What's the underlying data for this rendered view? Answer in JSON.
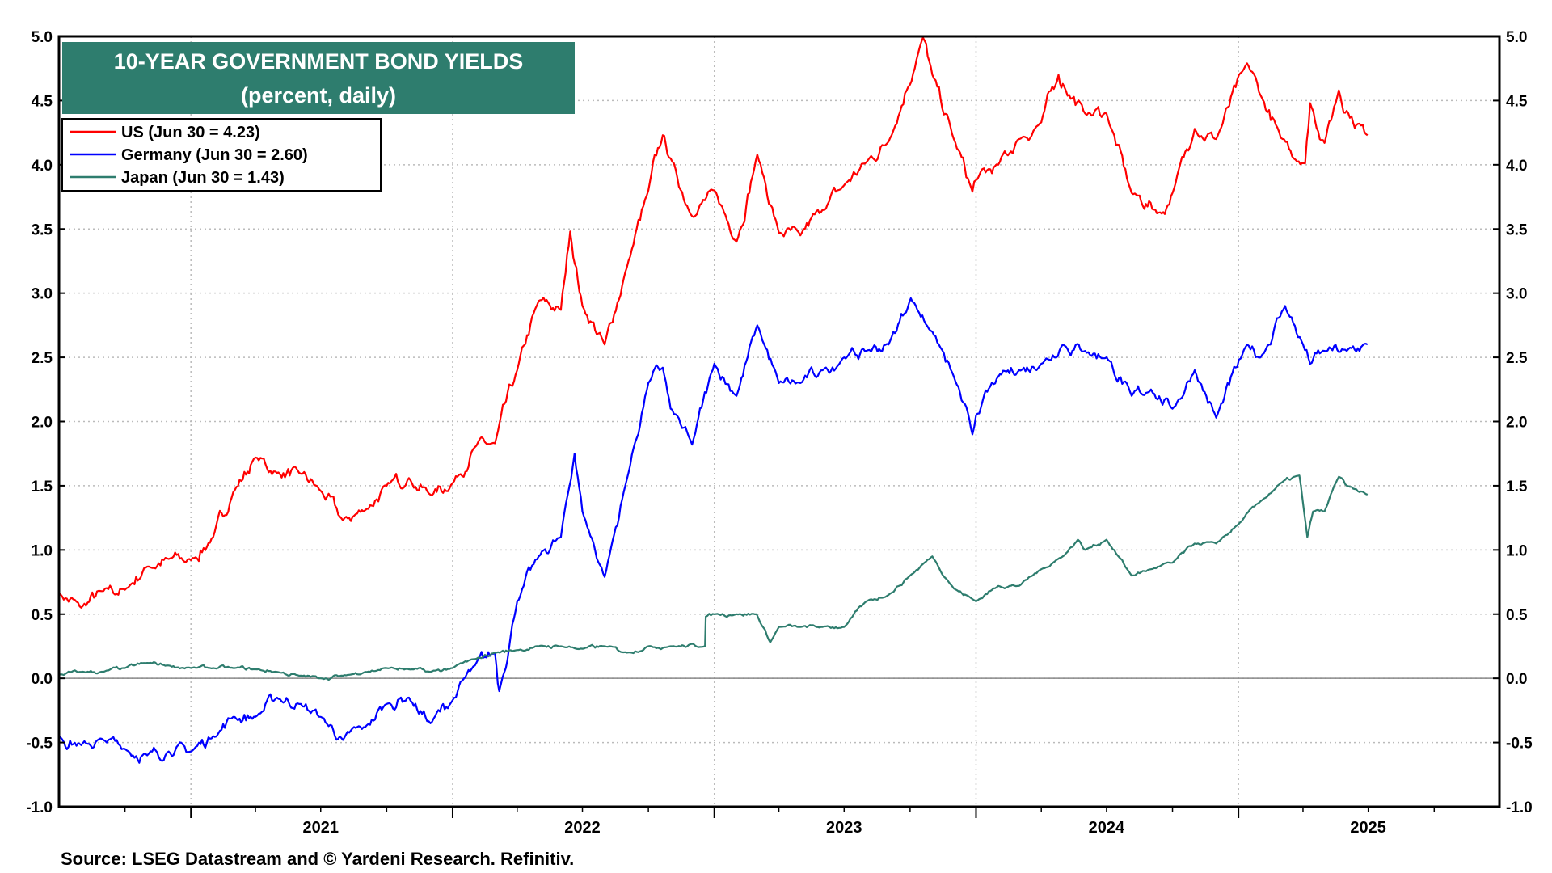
{
  "chart_data": {
    "type": "line",
    "title": "10-YEAR GOVERNMENT BOND YIELDS",
    "subtitle": "(percent, daily)",
    "source": "Source: LSEG Datastream and © Yardeni Research. Refinitiv.",
    "ylim": [
      -1.0,
      5.0
    ],
    "y_ticks": [
      "-1.0",
      "-0.5",
      "0.0",
      "0.5",
      "1.0",
      "1.5",
      "2.0",
      "2.5",
      "3.0",
      "3.5",
      "4.0",
      "4.5",
      "5.0"
    ],
    "x_range": [
      "2020-07-01",
      "2025-12-31"
    ],
    "x_tick_labels": [
      "2021",
      "2022",
      "2023",
      "2024",
      "2025"
    ],
    "grid": true,
    "legend_position": "top-left",
    "colors": {
      "title_bg": "#2e7d6e",
      "us": "#ff0000",
      "germany": "#0000ff",
      "japan": "#2e7d6e"
    },
    "series": [
      {
        "name": "US (Jun 30 = 4.23)",
        "points": [
          [
            "2020-07-01",
            0.66
          ],
          [
            "2020-08-01",
            0.55
          ],
          [
            "2020-09-01",
            0.68
          ],
          [
            "2020-10-01",
            0.69
          ],
          [
            "2020-11-01",
            0.87
          ],
          [
            "2020-12-01",
            0.93
          ],
          [
            "2021-01-01",
            0.92
          ],
          [
            "2021-02-01",
            1.1
          ],
          [
            "2021-03-01",
            1.45
          ],
          [
            "2021-04-01",
            1.72
          ],
          [
            "2021-05-01",
            1.6
          ],
          [
            "2021-06-01",
            1.6
          ],
          [
            "2021-07-01",
            1.46
          ],
          [
            "2021-08-01",
            1.23
          ],
          [
            "2021-09-01",
            1.31
          ],
          [
            "2021-10-01",
            1.5
          ],
          [
            "2021-11-01",
            1.56
          ],
          [
            "2021-12-01",
            1.43
          ],
          [
            "2022-01-01",
            1.52
          ],
          [
            "2022-02-01",
            1.8
          ],
          [
            "2022-03-01",
            1.83
          ],
          [
            "2022-04-01",
            2.4
          ],
          [
            "2022-05-01",
            2.94
          ],
          [
            "2022-06-01",
            2.87
          ],
          [
            "2022-06-14",
            3.48
          ],
          [
            "2022-07-01",
            2.9
          ],
          [
            "2022-08-01",
            2.6
          ],
          [
            "2022-09-01",
            3.2
          ],
          [
            "2022-10-01",
            3.8
          ],
          [
            "2022-10-21",
            4.23
          ],
          [
            "2022-11-01",
            4.05
          ],
          [
            "2022-12-01",
            3.6
          ],
          [
            "2023-01-01",
            3.8
          ],
          [
            "2023-02-01",
            3.4
          ],
          [
            "2023-03-02",
            4.08
          ],
          [
            "2023-04-01",
            3.47
          ],
          [
            "2023-05-01",
            3.45
          ],
          [
            "2023-06-01",
            3.65
          ],
          [
            "2023-07-01",
            3.84
          ],
          [
            "2023-08-01",
            4.02
          ],
          [
            "2023-09-01",
            4.18
          ],
          [
            "2023-10-19",
            4.99
          ],
          [
            "2023-11-01",
            4.7
          ],
          [
            "2023-12-01",
            4.2
          ],
          [
            "2023-12-27",
            3.79
          ],
          [
            "2024-01-01",
            3.88
          ],
          [
            "2024-02-01",
            4.0
          ],
          [
            "2024-03-01",
            4.2
          ],
          [
            "2024-04-01",
            4.33
          ],
          [
            "2024-04-25",
            4.7
          ],
          [
            "2024-05-01",
            4.63
          ],
          [
            "2024-06-01",
            4.4
          ],
          [
            "2024-07-01",
            4.4
          ],
          [
            "2024-08-05",
            3.78
          ],
          [
            "2024-09-16",
            3.62
          ],
          [
            "2024-10-01",
            3.78
          ],
          [
            "2024-11-01",
            4.28
          ],
          [
            "2024-12-01",
            4.2
          ],
          [
            "2025-01-13",
            4.79
          ],
          [
            "2025-02-01",
            4.54
          ],
          [
            "2025-03-01",
            4.21
          ],
          [
            "2025-04-04",
            4.01
          ],
          [
            "2025-04-11",
            4.48
          ],
          [
            "2025-05-01",
            4.17
          ],
          [
            "2025-05-21",
            4.58
          ],
          [
            "2025-06-01",
            4.42
          ],
          [
            "2025-06-30",
            4.23
          ]
        ]
      },
      {
        "name": "Germany (Jun 30 = 2.60)",
        "points": [
          [
            "2020-07-01",
            -0.45
          ],
          [
            "2020-08-01",
            -0.52
          ],
          [
            "2020-09-01",
            -0.48
          ],
          [
            "2020-10-01",
            -0.55
          ],
          [
            "2020-11-01",
            -0.6
          ],
          [
            "2020-12-01",
            -0.57
          ],
          [
            "2021-01-01",
            -0.57
          ],
          [
            "2021-02-01",
            -0.45
          ],
          [
            "2021-03-01",
            -0.3
          ],
          [
            "2021-04-01",
            -0.3
          ],
          [
            "2021-05-01",
            -0.15
          ],
          [
            "2021-06-01",
            -0.2
          ],
          [
            "2021-07-01",
            -0.3
          ],
          [
            "2021-08-01",
            -0.48
          ],
          [
            "2021-09-01",
            -0.38
          ],
          [
            "2021-10-01",
            -0.2
          ],
          [
            "2021-11-01",
            -0.15
          ],
          [
            "2021-12-01",
            -0.35
          ],
          [
            "2022-01-01",
            -0.17
          ],
          [
            "2022-02-01",
            0.1
          ],
          [
            "2022-03-01",
            0.2
          ],
          [
            "2022-03-07",
            -0.1
          ],
          [
            "2022-04-01",
            0.6
          ],
          [
            "2022-05-01",
            0.95
          ],
          [
            "2022-06-01",
            1.1
          ],
          [
            "2022-06-20",
            1.75
          ],
          [
            "2022-07-01",
            1.3
          ],
          [
            "2022-08-01",
            0.79
          ],
          [
            "2022-09-01",
            1.55
          ],
          [
            "2022-10-01",
            2.3
          ],
          [
            "2022-10-21",
            2.42
          ],
          [
            "2022-11-01",
            2.1
          ],
          [
            "2022-12-01",
            1.82
          ],
          [
            "2023-01-01",
            2.45
          ],
          [
            "2023-02-01",
            2.2
          ],
          [
            "2023-03-02",
            2.75
          ],
          [
            "2023-04-01",
            2.3
          ],
          [
            "2023-05-01",
            2.3
          ],
          [
            "2023-06-01",
            2.4
          ],
          [
            "2023-07-01",
            2.5
          ],
          [
            "2023-08-01",
            2.55
          ],
          [
            "2023-09-01",
            2.6
          ],
          [
            "2023-10-02",
            2.96
          ],
          [
            "2023-11-01",
            2.7
          ],
          [
            "2023-12-01",
            2.35
          ],
          [
            "2023-12-27",
            1.9
          ],
          [
            "2024-01-01",
            2.05
          ],
          [
            "2024-02-01",
            2.35
          ],
          [
            "2024-03-01",
            2.4
          ],
          [
            "2024-04-01",
            2.45
          ],
          [
            "2024-05-01",
            2.6
          ],
          [
            "2024-06-01",
            2.55
          ],
          [
            "2024-07-01",
            2.5
          ],
          [
            "2024-08-05",
            2.2
          ],
          [
            "2024-09-01",
            2.25
          ],
          [
            "2024-10-01",
            2.1
          ],
          [
            "2024-11-01",
            2.4
          ],
          [
            "2024-12-01",
            2.03
          ],
          [
            "2025-01-13",
            2.6
          ],
          [
            "2025-02-01",
            2.5
          ],
          [
            "2025-03-07",
            2.9
          ],
          [
            "2025-04-01",
            2.6
          ],
          [
            "2025-04-11",
            2.45
          ],
          [
            "2025-05-01",
            2.55
          ],
          [
            "2025-06-01",
            2.55
          ],
          [
            "2025-06-30",
            2.6
          ]
        ]
      },
      {
        "name": "Japan (Jun 30 = 1.43)",
        "points": [
          [
            "2020-07-01",
            0.03
          ],
          [
            "2020-08-01",
            0.05
          ],
          [
            "2020-09-01",
            0.05
          ],
          [
            "2020-10-01",
            0.08
          ],
          [
            "2020-11-01",
            0.12
          ],
          [
            "2020-12-01",
            0.1
          ],
          [
            "2021-01-01",
            0.08
          ],
          [
            "2021-02-01",
            0.08
          ],
          [
            "2021-03-01",
            0.08
          ],
          [
            "2021-04-01",
            0.07
          ],
          [
            "2021-05-01",
            0.05
          ],
          [
            "2021-06-01",
            0.02
          ],
          [
            "2021-07-01",
            0.0
          ],
          [
            "2021-08-01",
            0.02
          ],
          [
            "2021-09-01",
            0.05
          ],
          [
            "2021-10-01",
            0.08
          ],
          [
            "2021-11-01",
            0.07
          ],
          [
            "2021-12-01",
            0.05
          ],
          [
            "2022-01-01",
            0.08
          ],
          [
            "2022-02-01",
            0.15
          ],
          [
            "2022-03-01",
            0.2
          ],
          [
            "2022-04-01",
            0.22
          ],
          [
            "2022-05-01",
            0.25
          ],
          [
            "2022-06-01",
            0.25
          ],
          [
            "2022-07-01",
            0.23
          ],
          [
            "2022-08-01",
            0.25
          ],
          [
            "2022-09-01",
            0.2
          ],
          [
            "2022-10-01",
            0.25
          ],
          [
            "2022-11-01",
            0.25
          ],
          [
            "2022-12-19",
            0.25
          ],
          [
            "2022-12-20",
            0.48
          ],
          [
            "2023-01-01",
            0.5
          ],
          [
            "2023-02-01",
            0.5
          ],
          [
            "2023-03-01",
            0.5
          ],
          [
            "2023-03-20",
            0.28
          ],
          [
            "2023-04-01",
            0.4
          ],
          [
            "2023-05-01",
            0.4
          ],
          [
            "2023-06-01",
            0.4
          ],
          [
            "2023-07-01",
            0.4
          ],
          [
            "2023-08-01",
            0.6
          ],
          [
            "2023-09-01",
            0.65
          ],
          [
            "2023-10-01",
            0.8
          ],
          [
            "2023-11-01",
            0.95
          ],
          [
            "2023-12-01",
            0.7
          ],
          [
            "2024-01-01",
            0.6
          ],
          [
            "2024-02-01",
            0.72
          ],
          [
            "2024-03-01",
            0.72
          ],
          [
            "2024-04-01",
            0.85
          ],
          [
            "2024-05-01",
            0.95
          ],
          [
            "2024-05-22",
            1.08
          ],
          [
            "2024-06-01",
            1.0
          ],
          [
            "2024-07-01",
            1.08
          ],
          [
            "2024-08-05",
            0.8
          ],
          [
            "2024-09-01",
            0.85
          ],
          [
            "2024-10-01",
            0.9
          ],
          [
            "2024-11-01",
            1.05
          ],
          [
            "2024-12-01",
            1.05
          ],
          [
            "2025-01-01",
            1.2
          ],
          [
            "2025-02-01",
            1.38
          ],
          [
            "2025-03-01",
            1.52
          ],
          [
            "2025-03-27",
            1.58
          ],
          [
            "2025-04-07",
            1.1
          ],
          [
            "2025-04-15",
            1.3
          ],
          [
            "2025-05-01",
            1.3
          ],
          [
            "2025-05-21",
            1.57
          ],
          [
            "2025-06-01",
            1.5
          ],
          [
            "2025-06-30",
            1.43
          ]
        ]
      }
    ]
  }
}
